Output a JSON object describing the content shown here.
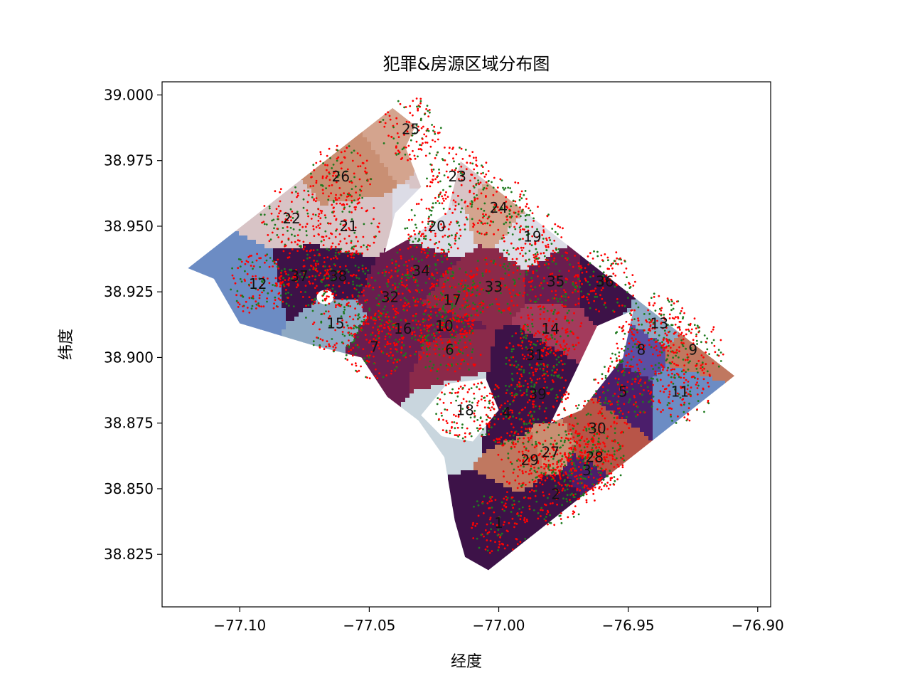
{
  "chart_data": {
    "type": "scatter",
    "title": "犯罪&房源区域分布图",
    "xlabel": "经度",
    "ylabel": "纬度",
    "xlim": [
      -77.13,
      -76.895
    ],
    "ylim": [
      38.805,
      39.005
    ],
    "x_ticks": [
      -77.1,
      -77.05,
      -77.0,
      -76.95,
      -76.9
    ],
    "x_tick_labels": [
      "−77.10",
      "−77.05",
      "−77.00",
      "−76.95",
      "−76.90"
    ],
    "y_ticks": [
      38.825,
      38.85,
      38.875,
      38.9,
      38.925,
      38.95,
      38.975,
      39.0
    ],
    "y_tick_labels": [
      "38.825",
      "38.850",
      "38.875",
      "38.900",
      "38.925",
      "38.950",
      "38.975",
      "39.000"
    ],
    "grid": false,
    "boundary": [
      [
        -77.041,
        38.995
      ],
      [
        -76.909,
        38.893
      ],
      [
        -77.004,
        38.819
      ],
      [
        -77.013,
        38.824
      ],
      [
        -77.017,
        38.838
      ],
      [
        -77.021,
        38.862
      ],
      [
        -77.031,
        38.876
      ],
      [
        -77.043,
        38.885
      ],
      [
        -77.053,
        38.9
      ],
      [
        -77.073,
        38.905
      ],
      [
        -77.1,
        38.913
      ],
      [
        -77.11,
        38.93
      ],
      [
        -77.12,
        38.934
      ]
    ],
    "region_colors": {
      "purple_dark": "#3d1248",
      "purple_mid": "#4b1e6b",
      "plum": "#6a1d4f",
      "maroon": "#8b2a4a",
      "rose": "#a33b5c",
      "brick": "#b85548",
      "salmon": "#c07860",
      "tan": "#c98f73",
      "peach": "#d4a48e",
      "pinkgray": "#d8c4c6",
      "lavgray": "#dcdce6",
      "lightblue": "#c9d6de",
      "slate": "#8ea9c4",
      "steel": "#6c8cc4",
      "indigo": "#5b4fa3"
    },
    "regions": [
      {
        "id": "1",
        "lon": -77.0,
        "lat": 38.837,
        "color": "#3d1248"
      },
      {
        "id": "2",
        "lon": -76.978,
        "lat": 38.848,
        "color": "#3d1248"
      },
      {
        "id": "3",
        "lon": -76.966,
        "lat": 38.857,
        "color": "#4b1e6b"
      },
      {
        "id": "4",
        "lon": -76.997,
        "lat": 38.879,
        "color": "#3d1248"
      },
      {
        "id": "5",
        "lon": -76.952,
        "lat": 38.887,
        "color": "#4b1e6b"
      },
      {
        "id": "6",
        "lon": -77.019,
        "lat": 38.903,
        "color": "#8b2a4a"
      },
      {
        "id": "7",
        "lon": -77.048,
        "lat": 38.904,
        "color": "#6a1d4f"
      },
      {
        "id": "8",
        "lon": -76.945,
        "lat": 38.903,
        "color": "#5b4fa3"
      },
      {
        "id": "9",
        "lon": -76.925,
        "lat": 38.903,
        "color": "#c07860"
      },
      {
        "id": "10",
        "lon": -77.021,
        "lat": 38.912,
        "color": "#6a1d4f"
      },
      {
        "id": "11",
        "lon": -76.93,
        "lat": 38.887,
        "color": "#6c8cc4"
      },
      {
        "id": "12",
        "lon": -77.093,
        "lat": 38.928,
        "color": "#6c8cc4"
      },
      {
        "id": "13",
        "lon": -76.938,
        "lat": 38.913,
        "color": "#8ea9c4"
      },
      {
        "id": "14",
        "lon": -76.98,
        "lat": 38.911,
        "color": "#a33b5c"
      },
      {
        "id": "15",
        "lon": -77.063,
        "lat": 38.913,
        "color": "#8ea9c4"
      },
      {
        "id": "16",
        "lon": -77.037,
        "lat": 38.911,
        "color": "#6a1d4f"
      },
      {
        "id": "17",
        "lon": -77.018,
        "lat": 38.922,
        "color": "#8b2a4a"
      },
      {
        "id": "18",
        "lon": -77.013,
        "lat": 38.88,
        "color": "#c9d6de"
      },
      {
        "id": "19",
        "lon": -76.987,
        "lat": 38.946,
        "color": "#dcdce6"
      },
      {
        "id": "20",
        "lon": -77.024,
        "lat": 38.95,
        "color": "#dcdce6"
      },
      {
        "id": "21",
        "lon": -77.058,
        "lat": 38.95,
        "color": "#d8c4c6"
      },
      {
        "id": "22",
        "lon": -77.08,
        "lat": 38.953,
        "color": "#d8c4c6"
      },
      {
        "id": "23",
        "lon": -77.016,
        "lat": 38.969,
        "color": "#d8c4c6"
      },
      {
        "id": "24",
        "lon": -77.0,
        "lat": 38.957,
        "color": "#d4a48e"
      },
      {
        "id": "25",
        "lon": -77.034,
        "lat": 38.987,
        "color": "#d4a48e"
      },
      {
        "id": "26",
        "lon": -77.061,
        "lat": 38.969,
        "color": "#c98f73"
      },
      {
        "id": "27",
        "lon": -76.98,
        "lat": 38.864,
        "color": "#c98f73"
      },
      {
        "id": "28",
        "lon": -76.963,
        "lat": 38.862,
        "color": "#b85548"
      },
      {
        "id": "29",
        "lon": -76.988,
        "lat": 38.861,
        "color": "#c07860"
      },
      {
        "id": "30",
        "lon": -76.962,
        "lat": 38.873,
        "color": "#b85548"
      },
      {
        "id": "31",
        "lon": -76.986,
        "lat": 38.901,
        "color": "#3d1248"
      },
      {
        "id": "32",
        "lon": -77.042,
        "lat": 38.923,
        "color": "#6a1d4f"
      },
      {
        "id": "33",
        "lon": -77.002,
        "lat": 38.927,
        "color": "#8b2a4a"
      },
      {
        "id": "34",
        "lon": -77.03,
        "lat": 38.933,
        "color": "#6a1d4f"
      },
      {
        "id": "35",
        "lon": -76.978,
        "lat": 38.929,
        "color": "#6a1d4f"
      },
      {
        "id": "36",
        "lon": -76.959,
        "lat": 38.929,
        "color": "#3d1248"
      },
      {
        "id": "37",
        "lon": -77.077,
        "lat": 38.931,
        "color": "#3d1248"
      },
      {
        "id": "38",
        "lon": -77.062,
        "lat": 38.931,
        "color": "#3d1248"
      },
      {
        "id": "39",
        "lon": -76.985,
        "lat": 38.886,
        "color": "#3d1248"
      }
    ],
    "series": [
      {
        "marker_color": "#ff0000",
        "density": 0.5
      },
      {
        "marker_color": "#1f7a1f",
        "density": 0.5
      }
    ]
  }
}
